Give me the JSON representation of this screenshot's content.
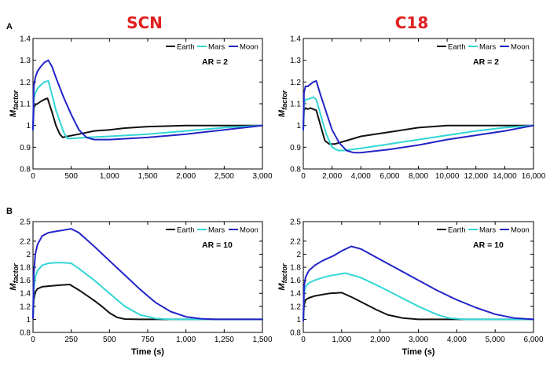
{
  "figure": {
    "col_titles": [
      "SCN",
      "C18"
    ],
    "row_labels": [
      "A",
      "B"
    ],
    "ylabel_main": "M",
    "ylabel_sub": "factor"
  },
  "colors": {
    "Earth": "#111111",
    "Mars": "#33d6d6",
    "Moon": "#2323c8"
  },
  "chart_data": [
    {
      "type": "line",
      "panel": "A-SCN",
      "annotation": "AR = 2",
      "xlabel": "",
      "xlim": [
        0,
        3000
      ],
      "ylim": [
        0.8,
        1.4
      ],
      "xticks": [
        0,
        500,
        1000,
        1500,
        2000,
        2500,
        3000
      ],
      "xtick_labels": [
        "0",
        "500",
        "1,000",
        "1,500",
        "2,000",
        "2,500",
        "3,000"
      ],
      "yticks": [
        0.8,
        0.9,
        1.0,
        1.1,
        1.2,
        1.3,
        1.4
      ],
      "ytick_labels": [
        "0.8",
        "0.9",
        "1",
        "1.1",
        "1.2",
        "1.3",
        "1.4"
      ],
      "legend": "top-right",
      "series": [
        {
          "name": "Earth",
          "x": [
            0,
            10,
            30,
            60,
            100,
            150,
            190,
            250,
            300,
            350,
            390,
            450,
            600,
            800,
            1000,
            1200,
            1500,
            2000,
            2500,
            3000
          ],
          "y": [
            0.98,
            1.08,
            1.095,
            1.1,
            1.11,
            1.12,
            1.125,
            1.06,
            1.0,
            0.96,
            0.945,
            0.95,
            0.96,
            0.975,
            0.98,
            0.988,
            0.995,
            1.0,
            1.0,
            1.0
          ]
        },
        {
          "name": "Mars",
          "x": [
            0,
            10,
            30,
            60,
            100,
            150,
            200,
            250,
            300,
            400,
            450,
            500,
            700,
            1000,
            1500,
            2000,
            2500,
            3000
          ],
          "y": [
            0.98,
            1.12,
            1.15,
            1.17,
            1.185,
            1.2,
            1.205,
            1.14,
            1.07,
            0.97,
            0.94,
            0.94,
            0.945,
            0.95,
            0.96,
            0.975,
            0.99,
            1.0
          ]
        },
        {
          "name": "Moon",
          "x": [
            0,
            10,
            30,
            60,
            100,
            150,
            200,
            250,
            300,
            400,
            500,
            600,
            700,
            800,
            1000,
            1500,
            2000,
            2500,
            3000
          ],
          "y": [
            0.98,
            1.18,
            1.22,
            1.25,
            1.27,
            1.29,
            1.3,
            1.27,
            1.22,
            1.13,
            1.05,
            0.98,
            0.945,
            0.935,
            0.935,
            0.945,
            0.96,
            0.98,
            1.0
          ]
        }
      ]
    },
    {
      "type": "line",
      "panel": "A-C18",
      "annotation": "AR = 2",
      "xlabel": "",
      "xlim": [
        0,
        16000
      ],
      "ylim": [
        0.8,
        1.4
      ],
      "xticks": [
        0,
        2000,
        4000,
        6000,
        8000,
        10000,
        12000,
        14000,
        16000
      ],
      "xtick_labels": [
        "0",
        "2,000",
        "4,000",
        "6,000",
        "8,000",
        "10,000",
        "12,000",
        "14,000",
        "16,000"
      ],
      "yticks": [
        0.8,
        0.9,
        1.0,
        1.1,
        1.2,
        1.3,
        1.4
      ],
      "ytick_labels": [
        "0.8",
        "0.9",
        "1",
        "1.1",
        "1.2",
        "1.3",
        "1.4"
      ],
      "legend": "top-right",
      "series": [
        {
          "name": "Earth",
          "x": [
            0,
            50,
            150,
            300,
            500,
            700,
            900,
            1200,
            1500,
            1800,
            2200,
            3000,
            4000,
            6000,
            8000,
            10000,
            12000,
            16000
          ],
          "y": [
            0.98,
            1.07,
            1.08,
            1.075,
            1.08,
            1.075,
            1.07,
            1.0,
            0.93,
            0.915,
            0.915,
            0.93,
            0.95,
            0.97,
            0.99,
            1.0,
            1.0,
            1.0
          ]
        },
        {
          "name": "Mars",
          "x": [
            0,
            50,
            150,
            300,
            500,
            700,
            900,
            1200,
            1600,
            2000,
            2400,
            2800,
            4000,
            6000,
            8000,
            10000,
            12000,
            14000,
            16000
          ],
          "y": [
            0.98,
            1.1,
            1.12,
            1.12,
            1.125,
            1.13,
            1.12,
            1.05,
            0.96,
            0.9,
            0.885,
            0.885,
            0.895,
            0.915,
            0.935,
            0.955,
            0.975,
            0.99,
            1.0
          ]
        },
        {
          "name": "Moon",
          "x": [
            0,
            50,
            150,
            300,
            500,
            700,
            900,
            1200,
            1600,
            2000,
            2500,
            3000,
            3500,
            4000,
            6000,
            8000,
            10000,
            12000,
            14000,
            16000
          ],
          "y": [
            0.98,
            1.15,
            1.18,
            1.18,
            1.19,
            1.2,
            1.205,
            1.14,
            1.06,
            0.98,
            0.92,
            0.885,
            0.875,
            0.875,
            0.89,
            0.91,
            0.935,
            0.955,
            0.975,
            1.0
          ]
        }
      ]
    },
    {
      "type": "line",
      "panel": "B-SCN",
      "annotation": "AR = 10",
      "xlabel": "Time (s)",
      "xlim": [
        0,
        1500
      ],
      "ylim": [
        0.8,
        2.5
      ],
      "xticks": [
        0,
        250,
        500,
        750,
        1000,
        1250,
        1500
      ],
      "xtick_labels": [
        "0",
        "250",
        "500",
        "750",
        "1,000",
        "1,250",
        "1,500"
      ],
      "yticks": [
        0.8,
        1.0,
        1.2,
        1.4,
        1.6,
        1.8,
        2.0,
        2.2,
        2.5
      ],
      "ytick_labels": [
        "0.8",
        "1",
        "1.2",
        "1.4",
        "1.6",
        "1.8",
        "2",
        "2.2",
        "2.5"
      ],
      "legend": "top-right",
      "series": [
        {
          "name": "Earth",
          "x": [
            0,
            5,
            15,
            30,
            60,
            100,
            150,
            200,
            240,
            300,
            350,
            400,
            450,
            500,
            550,
            600,
            700,
            800,
            1000,
            1500
          ],
          "y": [
            1.02,
            1.3,
            1.42,
            1.47,
            1.5,
            1.51,
            1.52,
            1.53,
            1.535,
            1.45,
            1.37,
            1.29,
            1.2,
            1.1,
            1.03,
            1.005,
            1.0,
            1.0,
            1.0,
            1.0
          ]
        },
        {
          "name": "Mars",
          "x": [
            0,
            5,
            15,
            30,
            60,
            100,
            150,
            200,
            250,
            300,
            400,
            500,
            600,
            700,
            800,
            900,
            1000,
            1500
          ],
          "y": [
            1.02,
            1.45,
            1.65,
            1.75,
            1.83,
            1.86,
            1.87,
            1.87,
            1.86,
            1.78,
            1.6,
            1.4,
            1.2,
            1.07,
            1.015,
            1.0,
            1.0,
            1.0
          ]
        },
        {
          "name": "Moon",
          "x": [
            0,
            5,
            15,
            30,
            60,
            100,
            150,
            200,
            250,
            300,
            400,
            500,
            600,
            700,
            800,
            900,
            1000,
            1100,
            1200,
            1500
          ],
          "y": [
            1.02,
            1.7,
            2.0,
            2.15,
            2.28,
            2.33,
            2.35,
            2.37,
            2.39,
            2.33,
            2.12,
            1.9,
            1.68,
            1.46,
            1.26,
            1.12,
            1.04,
            1.01,
            1.0,
            1.0
          ]
        }
      ]
    },
    {
      "type": "line",
      "panel": "B-C18",
      "annotation": "AR = 10",
      "xlabel": "Time (s)",
      "xlim": [
        0,
        6000
      ],
      "ylim": [
        0.8,
        2.5
      ],
      "xticks": [
        0,
        1000,
        2000,
        3000,
        4000,
        5000,
        6000
      ],
      "xtick_labels": [
        "0",
        "1,000",
        "2,000",
        "3,000",
        "4,000",
        "5,000",
        "6,000"
      ],
      "yticks": [
        0.8,
        1.0,
        1.2,
        1.4,
        1.6,
        1.8,
        2.0,
        2.2,
        2.5
      ],
      "ytick_labels": [
        "0.8",
        "1",
        "1.2",
        "1.4",
        "1.6",
        "1.8",
        "2",
        "2.2",
        "2.5"
      ],
      "legend": "top-right",
      "series": [
        {
          "name": "Earth",
          "x": [
            0,
            20,
            60,
            150,
            300,
            500,
            700,
            1000,
            1300,
            1600,
            1900,
            2200,
            2600,
            3000,
            4000,
            6000
          ],
          "y": [
            0.98,
            1.22,
            1.3,
            1.33,
            1.36,
            1.38,
            1.4,
            1.41,
            1.33,
            1.24,
            1.15,
            1.07,
            1.02,
            1.0,
            1.0,
            1.0
          ]
        },
        {
          "name": "Mars",
          "x": [
            0,
            20,
            60,
            150,
            300,
            500,
            700,
            1000,
            1100,
            1500,
            2000,
            2500,
            3000,
            3500,
            3800,
            4200,
            4500,
            6000
          ],
          "y": [
            0.98,
            1.4,
            1.5,
            1.56,
            1.6,
            1.64,
            1.67,
            1.7,
            1.71,
            1.64,
            1.5,
            1.35,
            1.2,
            1.07,
            1.02,
            1.0,
            1.0,
            1.0
          ]
        },
        {
          "name": "Moon",
          "x": [
            0,
            20,
            60,
            150,
            300,
            500,
            800,
            1000,
            1250,
            1500,
            2000,
            2500,
            3000,
            3500,
            4000,
            4500,
            5000,
            5500,
            6000
          ],
          "y": [
            0.98,
            1.5,
            1.65,
            1.75,
            1.83,
            1.9,
            1.98,
            2.05,
            2.12,
            2.08,
            1.92,
            1.76,
            1.6,
            1.44,
            1.3,
            1.18,
            1.08,
            1.02,
            1.0
          ]
        }
      ]
    }
  ]
}
